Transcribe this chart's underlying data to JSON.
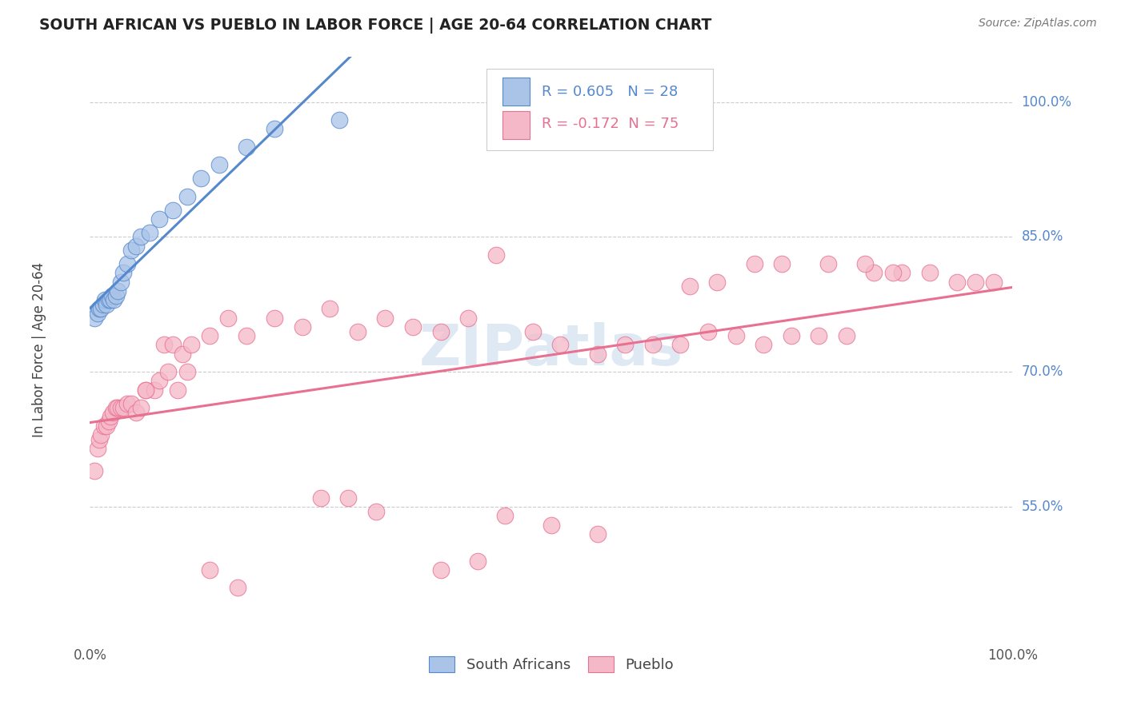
{
  "title": "SOUTH AFRICAN VS PUEBLO IN LABOR FORCE | AGE 20-64 CORRELATION CHART",
  "source": "Source: ZipAtlas.com",
  "ylabel": "In Labor Force | Age 20-64",
  "watermark": "ZIPatlas",
  "legend_r1": "R = 0.605",
  "legend_n1": "N = 28",
  "legend_r2": "R = -0.172",
  "legend_n2": "N = 75",
  "south_african_color": "#aac4e8",
  "pueblo_color": "#f5b8c8",
  "sa_line_color": "#5588cc",
  "pueblo_line_color": "#e87090",
  "background_color": "#ffffff",
  "grid_color": "#cccccc",
  "sa_x": [
    0.005,
    0.008,
    0.01,
    0.012,
    0.014,
    0.016,
    0.018,
    0.02,
    0.022,
    0.024,
    0.026,
    0.028,
    0.03,
    0.033,
    0.036,
    0.04,
    0.045,
    0.05,
    0.055,
    0.065,
    0.075,
    0.09,
    0.105,
    0.12,
    0.14,
    0.17,
    0.2,
    0.27
  ],
  "sa_y": [
    0.76,
    0.765,
    0.77,
    0.77,
    0.775,
    0.78,
    0.775,
    0.78,
    0.78,
    0.785,
    0.78,
    0.785,
    0.79,
    0.8,
    0.81,
    0.82,
    0.835,
    0.84,
    0.85,
    0.855,
    0.87,
    0.88,
    0.895,
    0.915,
    0.93,
    0.95,
    0.97,
    0.98
  ],
  "pueblo_x": [
    0.005,
    0.008,
    0.01,
    0.012,
    0.015,
    0.018,
    0.02,
    0.022,
    0.025,
    0.028,
    0.03,
    0.033,
    0.036,
    0.04,
    0.045,
    0.05,
    0.055,
    0.06,
    0.07,
    0.08,
    0.09,
    0.1,
    0.11,
    0.13,
    0.15,
    0.17,
    0.2,
    0.23,
    0.26,
    0.29,
    0.32,
    0.35,
    0.38,
    0.41,
    0.44,
    0.48,
    0.51,
    0.55,
    0.58,
    0.61,
    0.64,
    0.67,
    0.7,
    0.73,
    0.76,
    0.79,
    0.82,
    0.85,
    0.88,
    0.91,
    0.94,
    0.96,
    0.98,
    0.65,
    0.68,
    0.72,
    0.75,
    0.8,
    0.84,
    0.87,
    0.25,
    0.28,
    0.31,
    0.45,
    0.5,
    0.55,
    0.38,
    0.42,
    0.13,
    0.16,
    0.06,
    0.075,
    0.085,
    0.095,
    0.105
  ],
  "pueblo_y": [
    0.59,
    0.615,
    0.625,
    0.63,
    0.64,
    0.64,
    0.645,
    0.65,
    0.655,
    0.66,
    0.66,
    0.66,
    0.66,
    0.665,
    0.665,
    0.655,
    0.66,
    0.68,
    0.68,
    0.73,
    0.73,
    0.72,
    0.73,
    0.74,
    0.76,
    0.74,
    0.76,
    0.75,
    0.77,
    0.745,
    0.76,
    0.75,
    0.745,
    0.76,
    0.83,
    0.745,
    0.73,
    0.72,
    0.73,
    0.73,
    0.73,
    0.745,
    0.74,
    0.73,
    0.74,
    0.74,
    0.74,
    0.81,
    0.81,
    0.81,
    0.8,
    0.8,
    0.8,
    0.795,
    0.8,
    0.82,
    0.82,
    0.82,
    0.82,
    0.81,
    0.56,
    0.56,
    0.545,
    0.54,
    0.53,
    0.52,
    0.48,
    0.49,
    0.48,
    0.46,
    0.68,
    0.69,
    0.7,
    0.68,
    0.7
  ],
  "ytick_positions": [
    0.55,
    0.7,
    0.85,
    1.0
  ],
  "ytick_labels": [
    "55.0%",
    "70.0%",
    "85.0%",
    "100.0%"
  ],
  "ymin": 0.4,
  "ymax": 1.05
}
